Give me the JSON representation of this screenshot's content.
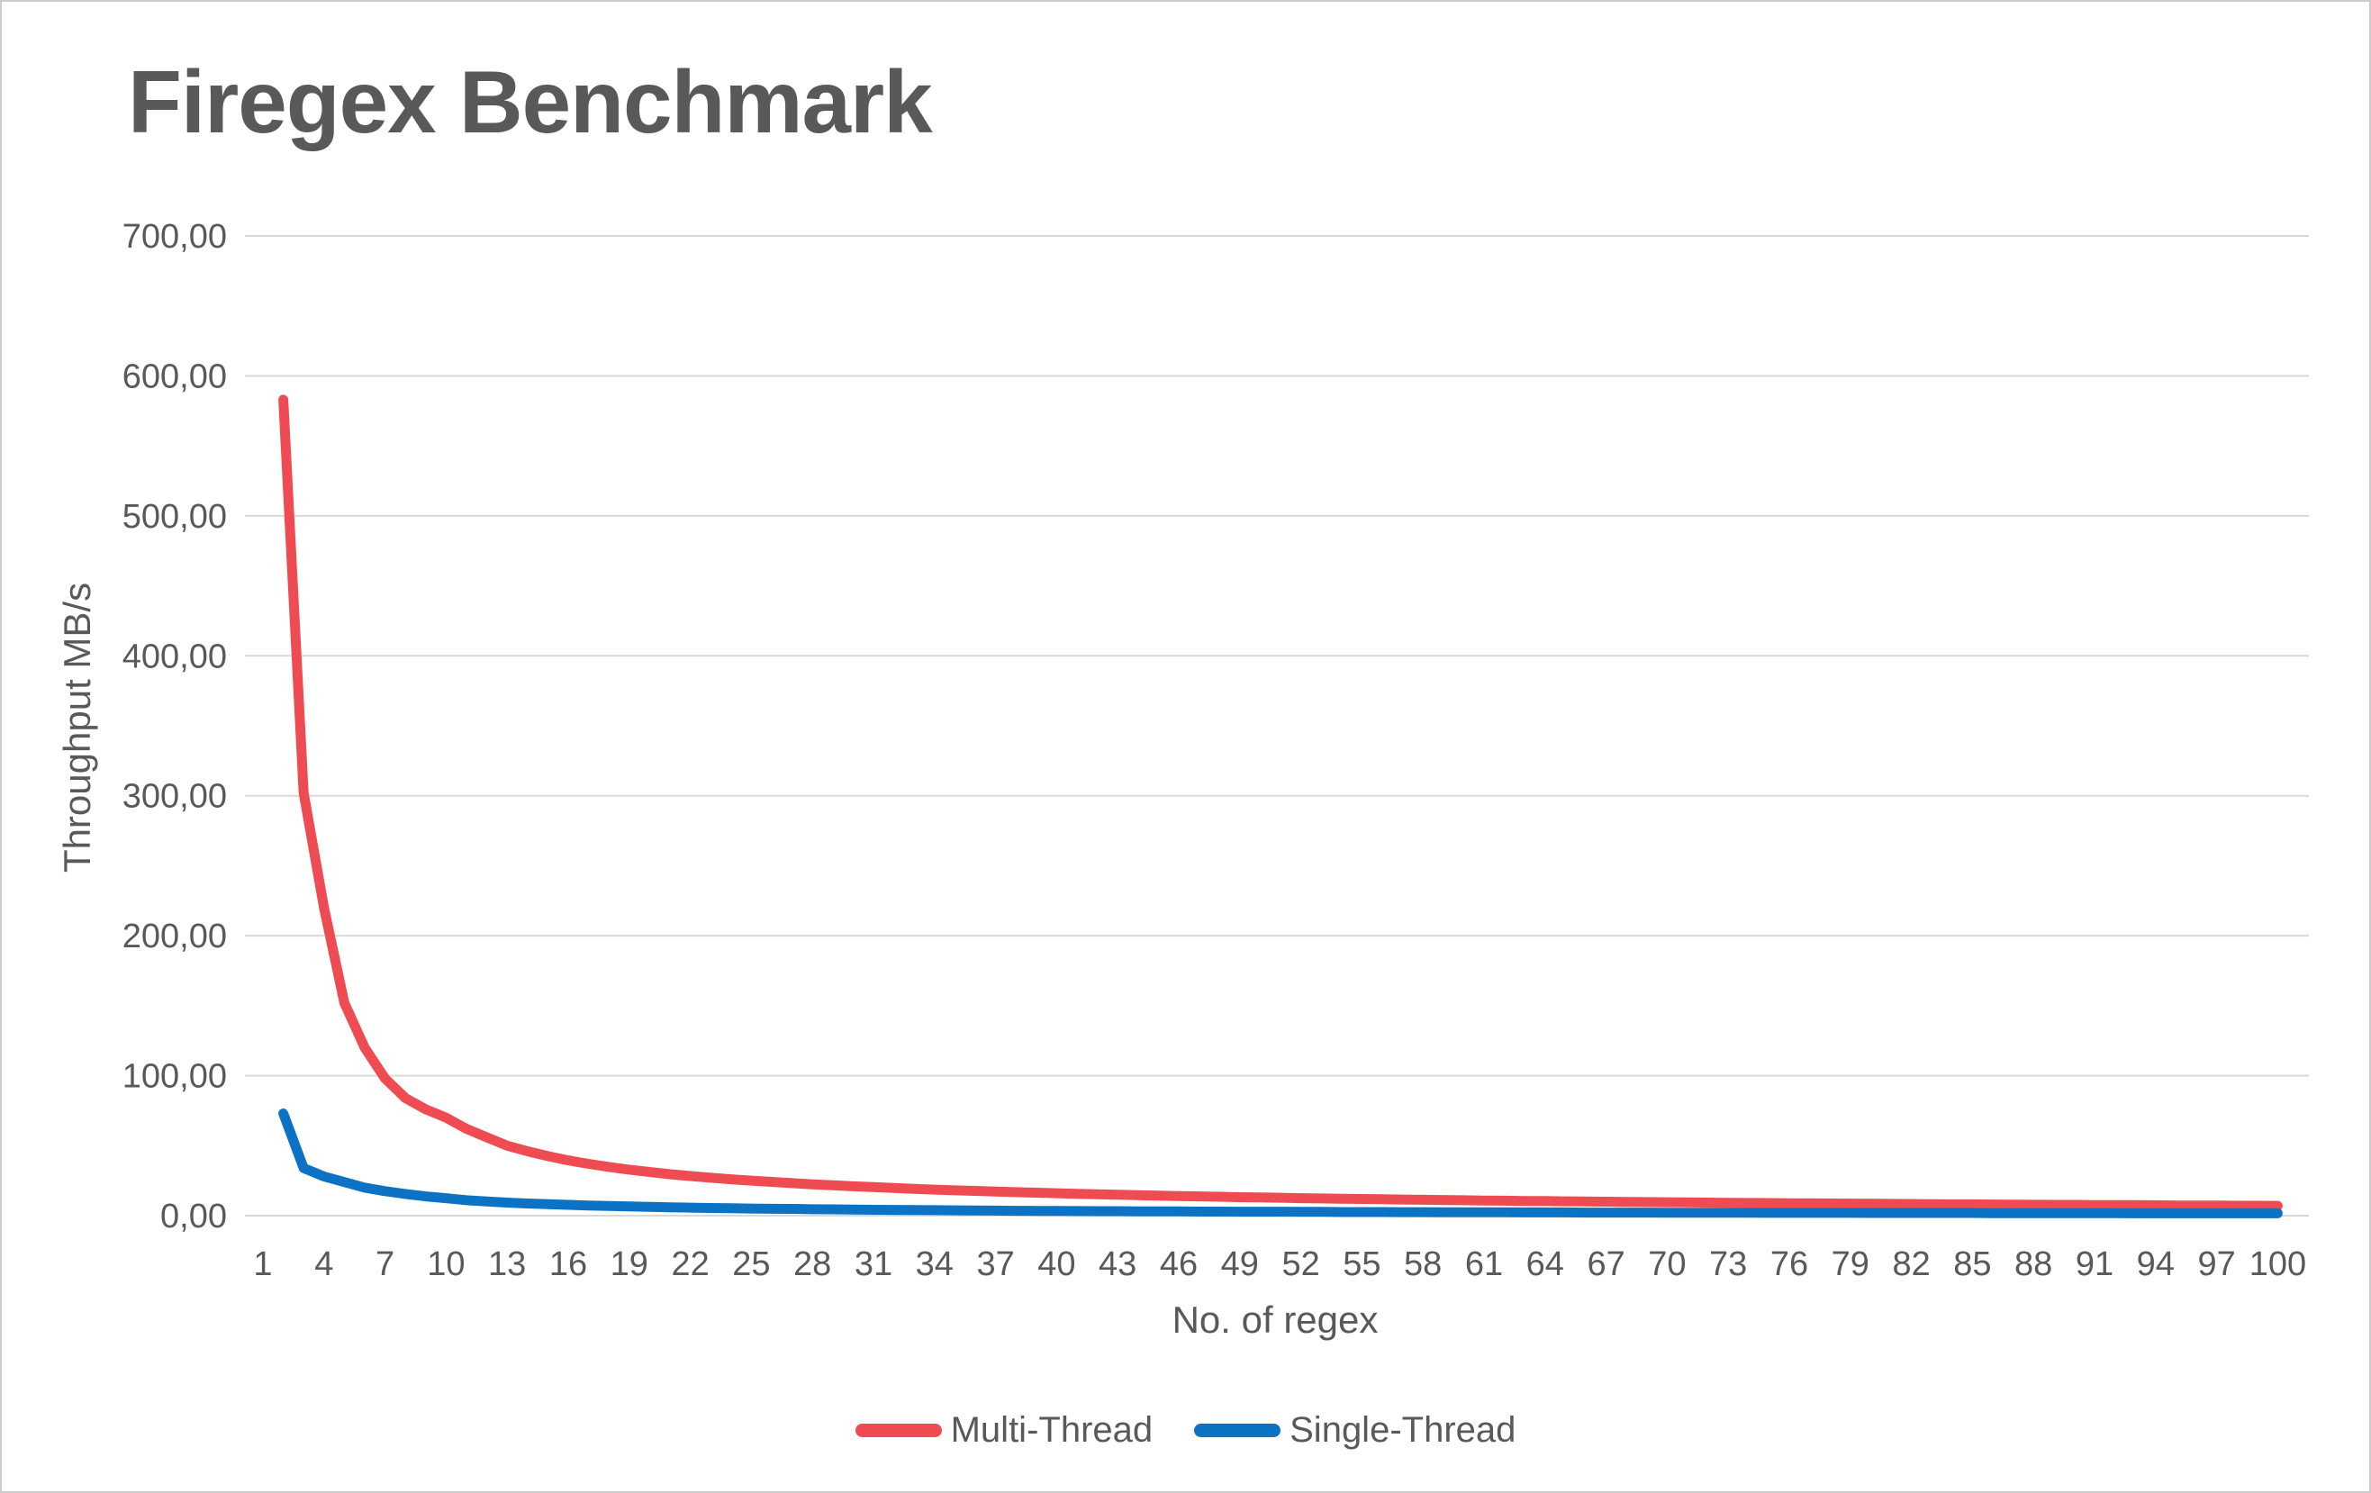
{
  "page": {
    "background": "#ffffff",
    "border_color": "#cccccc",
    "text_color": "#595959"
  },
  "chart_data": {
    "type": "line",
    "title": "Firegex Benchmark",
    "xlabel": "No. of regex",
    "ylabel": "Throughput MB/s",
    "ylim": [
      0,
      700
    ],
    "xlim": [
      1,
      100
    ],
    "grid": "horizontal-only",
    "gridline_color": "#D9D9D9",
    "legend_position": "bottom-center",
    "number_format": "comma-decimal",
    "y_tick_labels": [
      "700,00",
      "600,00",
      "500,00",
      "400,00",
      "300,00",
      "200,00",
      "100,00",
      "0,00"
    ],
    "x_tick_labels": [
      "1",
      "4",
      "7",
      "10",
      "13",
      "16",
      "19",
      "22",
      "25",
      "28",
      "31",
      "34",
      "37",
      "40",
      "43",
      "46",
      "49",
      "52",
      "55",
      "58",
      "61",
      "64",
      "67",
      "70",
      "73",
      "76",
      "79",
      "82",
      "85",
      "88",
      "91",
      "94",
      "97",
      "100"
    ],
    "x": [
      2,
      3,
      4,
      5,
      6,
      7,
      8,
      9,
      10,
      11,
      12,
      13,
      14,
      15,
      16,
      17,
      18,
      19,
      20,
      21,
      22,
      23,
      24,
      25,
      26,
      27,
      28,
      29,
      30,
      31,
      32,
      33,
      34,
      35,
      36,
      37,
      38,
      39,
      40,
      41,
      42,
      43,
      44,
      45,
      46,
      47,
      48,
      49,
      50,
      51,
      52,
      53,
      54,
      55,
      56,
      57,
      58,
      59,
      60,
      61,
      62,
      63,
      64,
      65,
      66,
      67,
      68,
      69,
      70,
      71,
      72,
      73,
      74,
      75,
      76,
      77,
      78,
      79,
      80,
      81,
      82,
      83,
      84,
      85,
      86,
      87,
      88,
      89,
      90,
      91,
      92,
      93,
      94,
      95,
      96,
      97,
      98,
      99,
      100
    ],
    "series": [
      {
        "name": "Multi-Thread",
        "color": "#EE4B52",
        "values": [
          583,
          302,
          220,
          152,
          120,
          98,
          84,
          76,
          70,
          62,
          56,
          50,
          46,
          42.5,
          39.5,
          37,
          34.8,
          32.9,
          31.2,
          29.6,
          28.3,
          27.1,
          26,
          25,
          24.1,
          23.2,
          22.4,
          21.7,
          21,
          20.4,
          19.8,
          19.2,
          18.6,
          18.1,
          17.7,
          17.2,
          16.8,
          16.4,
          16,
          15.6,
          15.3,
          15,
          14.6,
          14.3,
          14,
          13.8,
          13.5,
          13.2,
          13,
          12.8,
          12.5,
          12.3,
          12.1,
          11.9,
          11.7,
          11.5,
          11.3,
          11.2,
          11,
          10.8,
          10.7,
          10.5,
          10.4,
          10.2,
          10.1,
          10,
          9.8,
          9.7,
          9.6,
          9.5,
          9.3,
          9.2,
          9.1,
          9,
          8.9,
          8.8,
          8.7,
          8.6,
          8.5,
          8.4,
          8.3,
          8.2,
          8.1,
          8.1,
          8,
          7.9,
          7.8,
          7.7,
          7.7,
          7.6,
          7.5,
          7.5,
          7.4,
          7.3,
          7.3,
          7.2,
          7.1,
          7.1,
          7
        ]
      },
      {
        "name": "Single-Thread",
        "color": "#0B72C4",
        "values": [
          73,
          34,
          28,
          24,
          20,
          17.5,
          15.5,
          13.8,
          12.5,
          11,
          10.1,
          9.3,
          8.7,
          8.2,
          7.7,
          7.3,
          6.9,
          6.6,
          6.3,
          6,
          5.7,
          5.5,
          5.3,
          5.1,
          4.9,
          4.8,
          4.6,
          4.5,
          4.3,
          4.2,
          4.1,
          4,
          3.9,
          3.8,
          3.7,
          3.6,
          3.5,
          3.4,
          3.4,
          3.3,
          3.2,
          3.2,
          3.1,
          3.1,
          3,
          2.9,
          2.9,
          2.8,
          2.8,
          2.8,
          2.7,
          2.7,
          2.6,
          2.6,
          2.6,
          2.5,
          2.5,
          2.4,
          2.4,
          2.4,
          2.4,
          2.3,
          2.3,
          2.3,
          2.2,
          2.2,
          2.2,
          2.2,
          2.1,
          2.1,
          2.1,
          2.1,
          2.1,
          2,
          2,
          2,
          2,
          2,
          1.9,
          1.9,
          1.9,
          1.9,
          1.9,
          1.9,
          1.8,
          1.8,
          1.8,
          1.8,
          1.8,
          1.8,
          1.8,
          1.7,
          1.7,
          1.7,
          1.7,
          1.7,
          1.7,
          1.7,
          1.7
        ]
      }
    ]
  }
}
